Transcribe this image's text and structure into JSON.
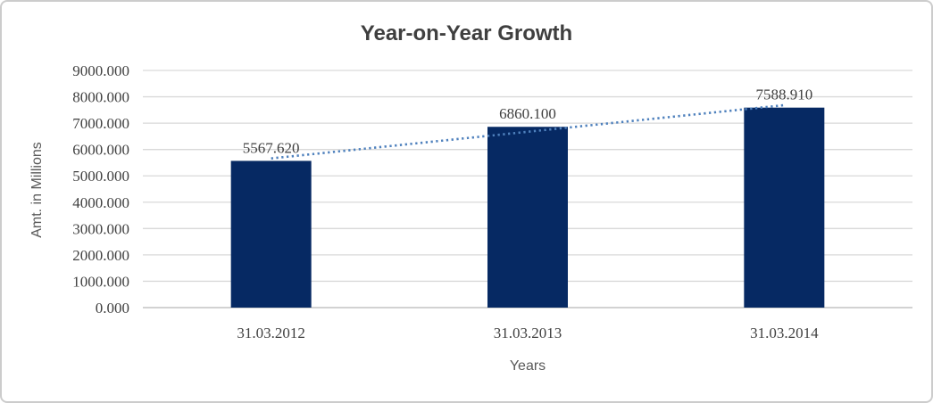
{
  "chart_data": {
    "type": "bar",
    "title": "Year-on-Year Growth",
    "xlabel": "Years",
    "ylabel": "Amt. in Millions",
    "categories": [
      "31.03.2012",
      "31.03.2013",
      "31.03.2014"
    ],
    "series": [
      {
        "name": "Amt. in Millions",
        "values": [
          5567.62,
          6860.1,
          7588.91
        ],
        "data_labels": [
          "5567.620",
          "6860.100",
          "7588.910"
        ]
      }
    ],
    "ylim": [
      0,
      9000
    ],
    "ytick_step": 1000,
    "ytick_labels": [
      "0.000",
      "1000.000",
      "2000.000",
      "3000.000",
      "4000.000",
      "5000.000",
      "6000.000",
      "7000.000",
      "8000.000",
      "9000.000"
    ],
    "grid": true,
    "legend": "none",
    "trendline": {
      "type": "linear",
      "style": "dotted"
    },
    "colors": {
      "bar": "#062963",
      "trendline": "#4f81bd",
      "gridline": "#d9d9d9",
      "axis_line": "#c3c3c3",
      "tick_text": "#404040",
      "data_label_text": "#404040",
      "title_text": "#3f3f3f",
      "axis_title_text": "#595959",
      "frame_border": "#cccccc"
    }
  }
}
